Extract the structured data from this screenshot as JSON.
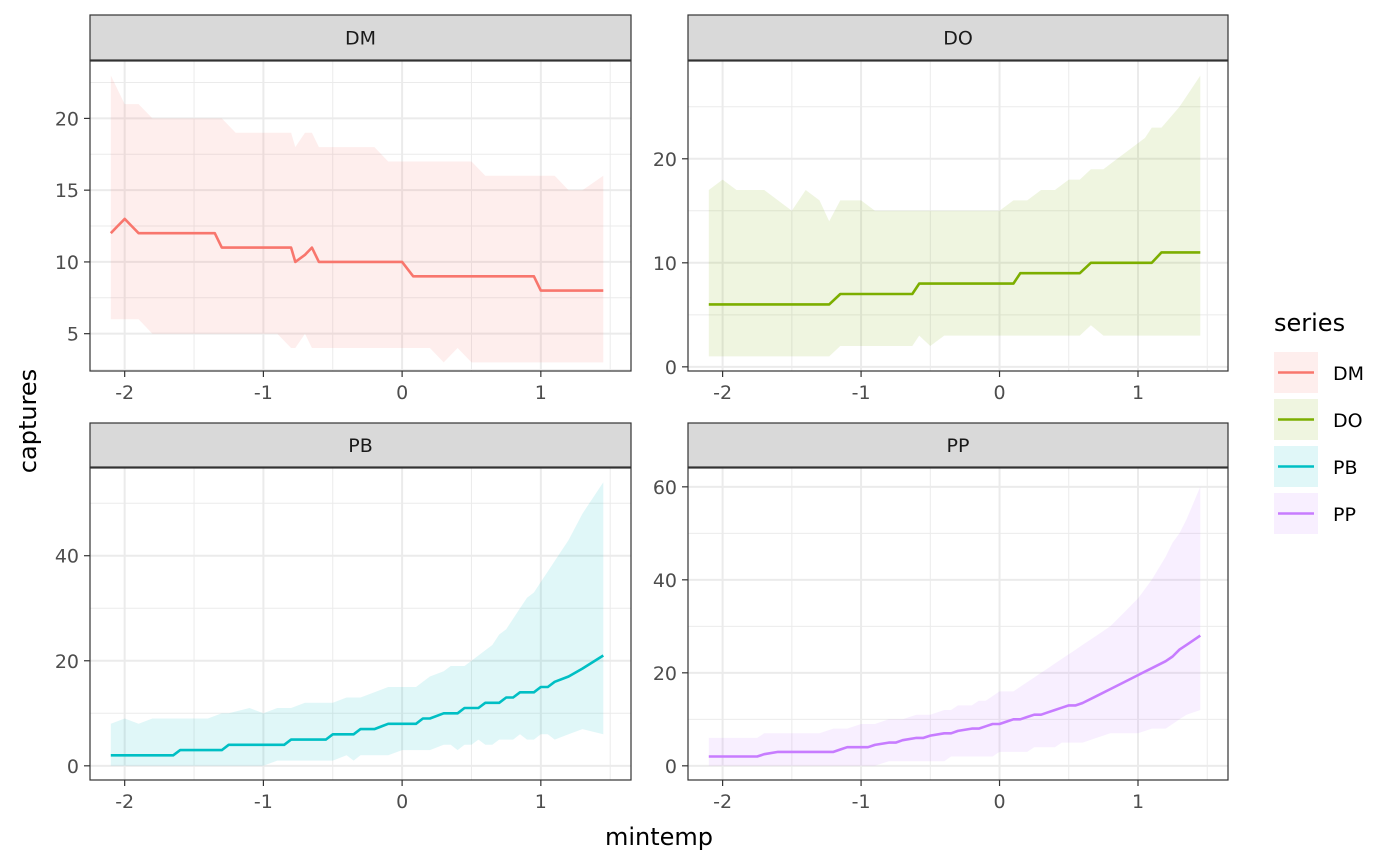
{
  "chart_data": {
    "type": "line",
    "xlabel": "mintemp",
    "ylabel": "captures",
    "legend": {
      "title": "series",
      "placement": "right"
    },
    "grid": true,
    "panels": [
      {
        "name": "DM",
        "color": "#F8766D",
        "xlim": [
          -2.25,
          1.65
        ],
        "ylim": [
          2.4,
          24.0
        ],
        "xticks": [
          -2,
          -1,
          0,
          1
        ],
        "yticks": [
          5,
          10,
          15,
          20
        ],
        "x": [
          -2.1,
          -2.05,
          -2.0,
          -1.95,
          -1.9,
          -1.8,
          -1.7,
          -1.6,
          -1.5,
          -1.4,
          -1.35,
          -1.3,
          -1.2,
          -1.1,
          -1.0,
          -0.9,
          -0.8,
          -0.77,
          -0.7,
          -0.65,
          -0.6,
          -0.5,
          -0.4,
          -0.3,
          -0.2,
          -0.1,
          0.0,
          0.08,
          0.2,
          0.3,
          0.4,
          0.5,
          0.6,
          0.7,
          0.8,
          0.9,
          0.95,
          1.0,
          1.1,
          1.2,
          1.3,
          1.45
        ],
        "y": [
          12,
          12.5,
          13,
          12.5,
          12,
          12,
          12,
          12,
          12,
          12,
          12,
          11,
          11,
          11,
          11,
          11,
          11,
          10,
          10.5,
          11,
          10,
          10,
          10,
          10,
          10,
          10,
          10,
          9,
          9,
          9,
          9,
          9,
          9,
          9,
          9,
          9,
          9,
          8,
          8,
          8,
          8,
          8
        ],
        "lower": [
          6,
          6,
          6,
          6,
          6,
          5,
          5,
          5,
          5,
          5,
          5,
          5,
          5,
          5,
          5,
          5,
          4,
          4,
          5,
          4,
          4,
          4,
          4,
          4,
          4,
          4,
          4,
          4,
          4,
          3,
          4,
          3,
          3,
          3,
          3,
          3,
          3,
          3,
          3,
          3,
          3,
          3
        ],
        "upper": [
          23,
          22,
          21,
          21,
          21,
          20,
          20,
          20,
          20,
          20,
          20,
          20,
          19,
          19,
          19,
          19,
          19,
          18,
          19,
          19,
          18,
          18,
          18,
          18,
          18,
          17,
          17,
          17,
          17,
          17,
          17,
          17,
          16,
          16,
          16,
          16,
          16,
          16,
          16,
          15,
          15,
          16
        ]
      },
      {
        "name": "DO",
        "color": "#7CAE00",
        "xlim": [
          -2.25,
          1.65
        ],
        "ylim": [
          -0.4,
          29.4
        ],
        "xticks": [
          -2,
          -1,
          0,
          1
        ],
        "yticks": [
          0,
          10,
          20
        ],
        "x": [
          -2.1,
          -2.0,
          -1.9,
          -1.8,
          -1.7,
          -1.6,
          -1.5,
          -1.4,
          -1.3,
          -1.23,
          -1.15,
          -1.0,
          -0.9,
          -0.8,
          -0.7,
          -0.63,
          -0.58,
          -0.5,
          -0.4,
          -0.3,
          -0.2,
          -0.1,
          0.0,
          0.1,
          0.15,
          0.2,
          0.3,
          0.4,
          0.5,
          0.58,
          0.66,
          0.75,
          0.85,
          0.95,
          1.05,
          1.1,
          1.17,
          1.3,
          1.45
        ],
        "y": [
          6,
          6,
          6,
          6,
          6,
          6,
          6,
          6,
          6,
          6,
          7,
          7,
          7,
          7,
          7,
          7,
          8,
          8,
          8,
          8,
          8,
          8,
          8,
          8,
          9,
          9,
          9,
          9,
          9,
          9,
          10,
          10,
          10,
          10,
          10,
          10,
          11,
          11,
          11
        ],
        "lower": [
          1,
          1,
          1,
          1,
          1,
          1,
          1,
          1,
          1,
          1,
          2,
          2,
          2,
          2,
          2,
          2,
          3,
          2,
          3,
          3,
          3,
          3,
          3,
          3,
          3,
          3,
          3,
          3,
          3,
          3,
          4,
          3,
          3,
          3,
          3,
          3,
          3,
          3,
          3
        ],
        "upper": [
          17,
          18,
          17,
          17,
          17,
          16,
          15,
          17,
          16,
          14,
          16,
          16,
          15,
          15,
          15,
          15,
          15,
          15,
          15,
          15,
          15,
          15,
          15,
          16,
          16,
          16,
          17,
          17,
          18,
          18,
          19,
          19,
          20,
          21,
          22,
          23,
          23,
          25,
          28
        ]
      },
      {
        "name": "PB",
        "color": "#00BFC4",
        "xlim": [
          -2.25,
          1.65
        ],
        "ylim": [
          -2.7,
          56.7
        ],
        "xticks": [
          -2,
          -1,
          0,
          1
        ],
        "yticks": [
          0,
          20,
          40
        ],
        "x": [
          -2.1,
          -2.0,
          -1.9,
          -1.8,
          -1.7,
          -1.65,
          -1.6,
          -1.5,
          -1.4,
          -1.3,
          -1.25,
          -1.1,
          -1.0,
          -0.9,
          -0.85,
          -0.8,
          -0.7,
          -0.6,
          -0.55,
          -0.5,
          -0.4,
          -0.35,
          -0.3,
          -0.2,
          -0.1,
          0.0,
          0.1,
          0.15,
          0.2,
          0.3,
          0.35,
          0.4,
          0.45,
          0.5,
          0.55,
          0.6,
          0.65,
          0.7,
          0.75,
          0.8,
          0.85,
          0.9,
          0.95,
          1.0,
          1.05,
          1.1,
          1.2,
          1.3,
          1.45
        ],
        "y": [
          2,
          2,
          2,
          2,
          2,
          2,
          3,
          3,
          3,
          3,
          4,
          4,
          4,
          4,
          4,
          5,
          5,
          5,
          5,
          6,
          6,
          6,
          7,
          7,
          8,
          8,
          8,
          9,
          9,
          10,
          10,
          10,
          11,
          11,
          11,
          12,
          12,
          12,
          13,
          13,
          14,
          14,
          14,
          15,
          15,
          16,
          17,
          18.5,
          21
        ],
        "lower": [
          0,
          0,
          0,
          0,
          0,
          0,
          0,
          0,
          0,
          0,
          0,
          0,
          0,
          1,
          1,
          1,
          1,
          1,
          1,
          1,
          2,
          1,
          2,
          2,
          2,
          3,
          3,
          3,
          3,
          4,
          4,
          3,
          4,
          4,
          5,
          4,
          4,
          5,
          5,
          5,
          6,
          5,
          5,
          6,
          6,
          5,
          6,
          7,
          6
        ],
        "upper": [
          8,
          9,
          8,
          9,
          9,
          9,
          9,
          9,
          9,
          10,
          10,
          11,
          10,
          11,
          11,
          11,
          12,
          12,
          12,
          12,
          13,
          13,
          13,
          14,
          15,
          15,
          15,
          16,
          17,
          18,
          19,
          19,
          19,
          20,
          21,
          22,
          23,
          25,
          26,
          28,
          30,
          32,
          33,
          35,
          37,
          39,
          43,
          48,
          54
        ]
      },
      {
        "name": "PP",
        "color": "#C77CFF",
        "xlim": [
          -2.25,
          1.65
        ],
        "ylim": [
          -3.05,
          64.05
        ],
        "xticks": [
          -2,
          -1,
          0,
          1
        ],
        "yticks": [
          0,
          20,
          40,
          60
        ],
        "x": [
          -2.1,
          -2.0,
          -1.9,
          -1.8,
          -1.75,
          -1.7,
          -1.6,
          -1.5,
          -1.4,
          -1.3,
          -1.2,
          -1.15,
          -1.1,
          -1.0,
          -0.95,
          -0.9,
          -0.8,
          -0.75,
          -0.7,
          -0.6,
          -0.55,
          -0.5,
          -0.4,
          -0.35,
          -0.3,
          -0.2,
          -0.15,
          -0.1,
          -0.05,
          0.0,
          0.05,
          0.1,
          0.15,
          0.2,
          0.25,
          0.3,
          0.35,
          0.4,
          0.45,
          0.5,
          0.55,
          0.6,
          0.7,
          0.8,
          0.9,
          1.0,
          1.1,
          1.2,
          1.25,
          1.3,
          1.35,
          1.45
        ],
        "y": [
          2,
          2,
          2,
          2,
          2,
          2.5,
          3,
          3,
          3,
          3,
          3,
          3.5,
          4,
          4,
          4,
          4.5,
          5,
          5,
          5.5,
          6,
          6,
          6.5,
          7,
          7,
          7.5,
          8,
          8,
          8.5,
          9,
          9,
          9.5,
          10,
          10,
          10.5,
          11,
          11,
          11.5,
          12,
          12.5,
          13,
          13,
          13.5,
          15,
          16.5,
          18,
          19.5,
          21,
          22.5,
          23.5,
          25,
          26,
          28
        ],
        "lower": [
          0,
          0,
          0,
          0,
          0,
          0,
          0,
          0,
          0,
          0,
          0,
          0,
          0,
          0,
          0,
          0,
          1,
          1,
          1,
          1,
          1,
          1,
          1,
          2,
          2,
          2,
          2,
          2,
          2,
          3,
          3,
          3,
          3,
          3,
          4,
          4,
          4,
          4,
          5,
          5,
          5,
          5,
          6,
          7,
          7,
          7,
          8,
          8,
          9,
          10,
          11,
          12
        ],
        "upper": [
          6,
          6,
          6,
          6,
          6,
          7,
          7,
          7,
          7,
          7,
          8,
          8,
          8,
          9,
          9,
          9,
          10,
          10,
          10,
          11,
          11,
          11,
          12,
          12,
          13,
          13,
          14,
          14,
          15,
          16,
          16,
          16,
          17,
          18,
          19,
          20,
          21,
          22,
          23,
          24,
          25,
          26,
          28,
          30,
          33,
          36,
          40,
          45,
          48,
          50,
          53,
          60
        ]
      }
    ]
  }
}
